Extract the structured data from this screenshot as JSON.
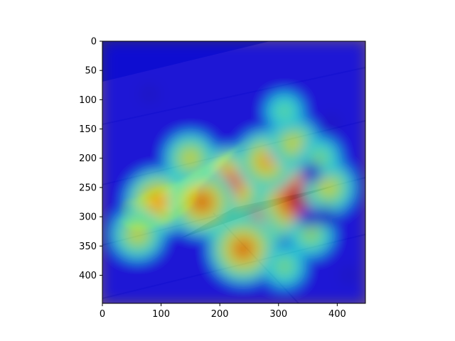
{
  "chart_data": {
    "type": "heatmap",
    "title": "",
    "subtitle": "",
    "xlabel": "",
    "ylabel": "",
    "description_kind": "grad-cam style attention heatmap overlaid on photograph",
    "xlim": [
      0,
      448
    ],
    "ylim": [
      448,
      0
    ],
    "xticks": [
      0,
      100,
      200,
      300,
      400
    ],
    "yticks": [
      0,
      50,
      100,
      150,
      200,
      250,
      300,
      350,
      400
    ],
    "xtick_labels": [
      "0",
      "100",
      "200",
      "300",
      "400"
    ],
    "ytick_labels": [
      "0",
      "50",
      "100",
      "150",
      "200",
      "250",
      "300",
      "350",
      "400"
    ],
    "colormap": "jet",
    "grid": false,
    "legend": "none",
    "hotspots": [
      {
        "x": 245,
        "y": 295,
        "intensity": 1.0
      },
      {
        "x": 335,
        "y": 268,
        "intensity": 0.95
      },
      {
        "x": 215,
        "y": 245,
        "intensity": 0.8
      },
      {
        "x": 240,
        "y": 355,
        "intensity": 0.7
      },
      {
        "x": 280,
        "y": 205,
        "intensity": 0.6
      },
      {
        "x": 95,
        "y": 275,
        "intensity": 0.65
      },
      {
        "x": 170,
        "y": 275,
        "intensity": 0.7
      },
      {
        "x": 150,
        "y": 200,
        "intensity": 0.45
      },
      {
        "x": 60,
        "y": 330,
        "intensity": 0.45
      },
      {
        "x": 385,
        "y": 250,
        "intensity": 0.45
      },
      {
        "x": 325,
        "y": 175,
        "intensity": 0.45
      },
      {
        "x": 355,
        "y": 330,
        "intensity": 0.35
      },
      {
        "x": 310,
        "y": 120,
        "intensity": 0.25
      },
      {
        "x": 370,
        "y": 200,
        "intensity": 0.3
      },
      {
        "x": 310,
        "y": 385,
        "intensity": 0.3
      }
    ],
    "cold_spots": [
      {
        "x": 390,
        "y": 140
      },
      {
        "x": 350,
        "y": 300
      },
      {
        "x": 380,
        "y": 300
      },
      {
        "x": 355,
        "y": 225
      },
      {
        "x": 80,
        "y": 90
      },
      {
        "x": 420,
        "y": 400
      }
    ]
  },
  "colors": {
    "axis": "#000000",
    "background": "#ffffff",
    "heat_base": "#4a3bc4",
    "pavement": "#7a5a7e",
    "bird_body": "#8a8a2a"
  }
}
